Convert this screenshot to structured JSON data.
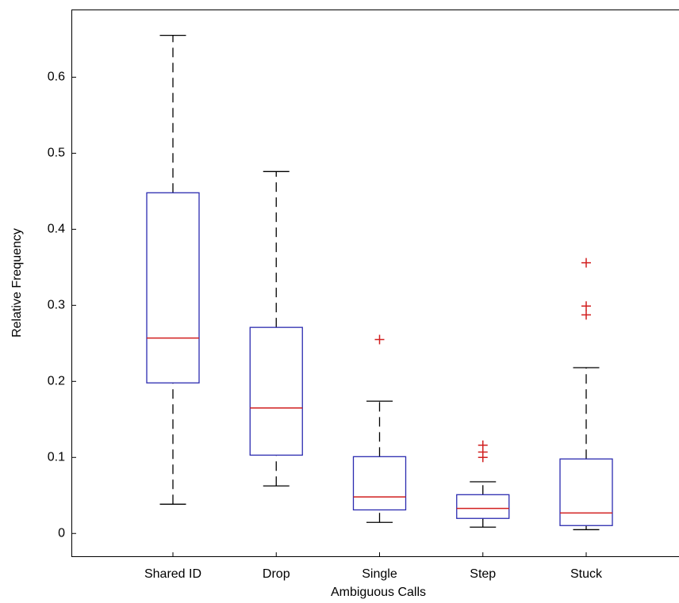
{
  "chart_data": {
    "type": "box",
    "x_label": "Ambiguous Calls",
    "y_label": "Relative Frequency",
    "categories": [
      "Shared ID",
      "Drop",
      "Single",
      "Step",
      "Stuck"
    ],
    "boxes": [
      {
        "whisker_low": 0.0385,
        "q1": 0.198,
        "median": 0.257,
        "q3": 0.448,
        "whisker_high": 0.655,
        "outliers": []
      },
      {
        "whisker_low": 0.0625,
        "q1": 0.103,
        "median": 0.165,
        "q3": 0.271,
        "whisker_high": 0.476,
        "outliers": []
      },
      {
        "whisker_low": 0.0146,
        "q1": 0.031,
        "median": 0.048,
        "q3": 0.101,
        "whisker_high": 0.174,
        "outliers": [
          0.255
        ]
      },
      {
        "whisker_low": 0.0083,
        "q1": 0.0198,
        "median": 0.033,
        "q3": 0.051,
        "whisker_high": 0.068,
        "outliers": [
          0.116,
          0.107,
          0.1
        ]
      },
      {
        "whisker_low": 0.005,
        "q1": 0.0104,
        "median": 0.027,
        "q3": 0.098,
        "whisker_high": 0.218,
        "outliers": [
          0.356,
          0.299,
          0.2875
        ]
      }
    ],
    "box_color": "#2b2bb0",
    "median_color": "#d11f1f",
    "outlier_color": "#d11f1f",
    "whisker_color": "#000000",
    "ylim": [
      -0.031,
      0.689
    ],
    "yticks": [
      0,
      0.1,
      0.2,
      0.3,
      0.4,
      0.5,
      0.6
    ]
  }
}
